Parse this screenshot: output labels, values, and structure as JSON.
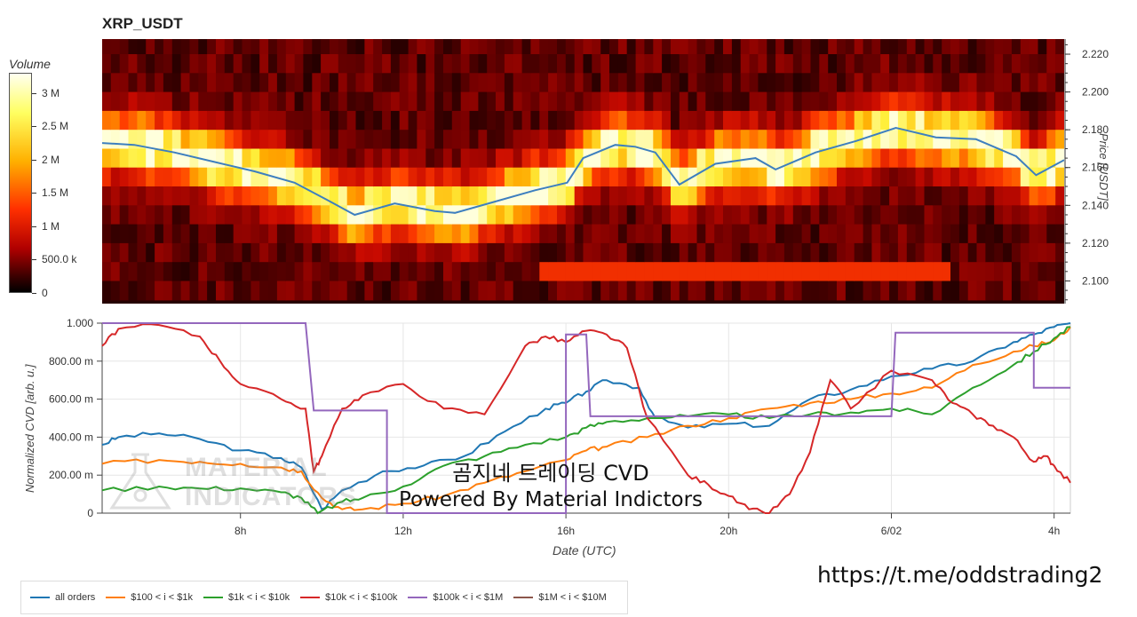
{
  "chart_title": "XRP_USDT",
  "colorbar": {
    "title": "Volume",
    "ticks": [
      {
        "label": "3 M",
        "value": 3000000
      },
      {
        "label": "2.5 M",
        "value": 2500000
      },
      {
        "label": "2 M",
        "value": 2000000
      },
      {
        "label": "1.5 M",
        "value": 1500000
      },
      {
        "label": "1 M",
        "value": 1000000
      },
      {
        "label": "500.0 k",
        "value": 500000
      },
      {
        "label": "0",
        "value": 0
      }
    ]
  },
  "overlay": {
    "title": "곰지네 트레이딩 CVD",
    "subtitle": "Powered By Material Indictors",
    "watermark_line1": "MATERIAL",
    "watermark_line2": "INDICATORS",
    "url": "https://t.me/oddstrading2"
  },
  "colors": {
    "price_line": "#3d7fbf",
    "all_orders": "#1f77b4",
    "b100_1k": "#ff7f0e",
    "b1k_10k": "#2ca02c",
    "b10k_100k": "#d62728",
    "b100k_1m": "#9467bd",
    "b1m_10m": "#8c564b"
  },
  "chart_data": [
    {
      "type": "heatmap",
      "title": "XRP_USDT",
      "ylabel": "Price [USDT]",
      "y_ticks": [
        "2.220",
        "2.200",
        "2.180",
        "2.160",
        "2.140",
        "2.120",
        "2.100"
      ],
      "y_tick_values": [
        2.22,
        2.2,
        2.18,
        2.16,
        2.14,
        2.12,
        2.1
      ],
      "ylim": [
        2.088,
        2.228
      ],
      "x_range_hours": [
        4.2,
        28.2
      ],
      "price_bins": [
        2.225,
        2.215,
        2.205,
        2.195,
        2.185,
        2.175,
        2.165,
        2.155,
        2.145,
        2.135,
        2.125,
        2.115,
        2.105,
        2.095
      ],
      "price_series": {
        "name": "price",
        "x_hours": [
          4.2,
          5.0,
          6.0,
          7.0,
          8.0,
          9.0,
          9.8,
          10.5,
          11.5,
          12.5,
          13.0,
          14.0,
          15.0,
          15.8,
          16.2,
          17.0,
          17.5,
          18.0,
          18.6,
          19.5,
          20.5,
          21.0,
          22.0,
          23.0,
          24.0,
          25.0,
          26.0,
          27.0,
          27.5,
          28.2
        ],
        "values": [
          2.173,
          2.172,
          2.168,
          2.163,
          2.158,
          2.152,
          2.143,
          2.135,
          2.141,
          2.137,
          2.136,
          2.142,
          2.148,
          2.152,
          2.165,
          2.172,
          2.171,
          2.168,
          2.151,
          2.162,
          2.165,
          2.159,
          2.168,
          2.174,
          2.181,
          2.176,
          2.175,
          2.166,
          2.156,
          2.164
        ]
      }
    },
    {
      "type": "line",
      "xlabel": "Date (UTC)",
      "ylabel": "Normalized CVD [arb. u.]",
      "x_ticks": [
        "8h",
        "12h",
        "16h",
        "20h",
        "6/02",
        "4h"
      ],
      "x_tick_values": [
        8,
        12,
        16,
        20,
        24,
        28
      ],
      "y_ticks": [
        "1.000",
        "800.00 m",
        "600.00 m",
        "400.00 m",
        "200.00 m",
        "0"
      ],
      "y_tick_values": [
        1.0,
        0.8,
        0.6,
        0.4,
        0.2,
        0
      ],
      "ylim": [
        0,
        1
      ],
      "xlim": [
        4.6,
        28.4
      ],
      "series": [
        {
          "name": "all orders",
          "color_key": "all_orders",
          "x": [
            4.6,
            5.0,
            6.0,
            7.0,
            8.0,
            9.0,
            9.5,
            10.0,
            10.5,
            11.5,
            12.5,
            13.5,
            14.5,
            15.5,
            16.0,
            16.5,
            17.0,
            17.8,
            18.2,
            19.0,
            20.0,
            21.0,
            22.0,
            23.0,
            24.0,
            25.0,
            26.0,
            27.0,
            27.5,
            28.0,
            28.4
          ],
          "y": [
            0.36,
            0.4,
            0.42,
            0.39,
            0.33,
            0.29,
            0.24,
            0.02,
            0.12,
            0.22,
            0.25,
            0.3,
            0.43,
            0.55,
            0.58,
            0.64,
            0.7,
            0.66,
            0.5,
            0.45,
            0.47,
            0.46,
            0.6,
            0.65,
            0.72,
            0.76,
            0.8,
            0.9,
            0.94,
            0.98,
            1.0
          ]
        },
        {
          "name": "$100 < i < $1k",
          "color_key": "b100_1k",
          "x": [
            4.6,
            6.0,
            7.0,
            8.0,
            9.0,
            9.5,
            10.0,
            10.5,
            11.0,
            12.0,
            13.0,
            14.0,
            15.0,
            16.0,
            16.5,
            17.0,
            18.0,
            19.0,
            20.0,
            21.0,
            22.0,
            23.0,
            24.0,
            25.0,
            26.0,
            27.0,
            27.5,
            28.0,
            28.4
          ],
          "y": [
            0.26,
            0.28,
            0.27,
            0.26,
            0.24,
            0.22,
            0.08,
            0.02,
            0.02,
            0.05,
            0.09,
            0.16,
            0.22,
            0.28,
            0.33,
            0.35,
            0.4,
            0.46,
            0.5,
            0.55,
            0.58,
            0.6,
            0.63,
            0.66,
            0.78,
            0.85,
            0.88,
            0.91,
            0.98
          ]
        },
        {
          "name": "$1k < i < $10k",
          "color_key": "b1k_10k",
          "x": [
            4.6,
            6.0,
            7.0,
            8.0,
            9.0,
            9.5,
            9.9,
            10.5,
            11.0,
            12.0,
            13.0,
            14.0,
            15.0,
            16.0,
            16.5,
            17.0,
            18.0,
            19.0,
            20.0,
            21.0,
            22.0,
            23.0,
            24.0,
            25.0,
            26.0,
            27.0,
            27.5,
            28.0,
            28.4
          ],
          "y": [
            0.12,
            0.14,
            0.13,
            0.13,
            0.11,
            0.08,
            0.0,
            0.06,
            0.08,
            0.14,
            0.25,
            0.3,
            0.36,
            0.4,
            0.45,
            0.48,
            0.5,
            0.51,
            0.52,
            0.5,
            0.52,
            0.53,
            0.55,
            0.52,
            0.66,
            0.78,
            0.85,
            0.92,
            0.98
          ]
        },
        {
          "name": "$10k < i < $100k",
          "color_key": "b10k_100k",
          "x": [
            4.6,
            5.0,
            6.0,
            7.0,
            7.5,
            8.0,
            9.0,
            9.6,
            9.8,
            10.0,
            10.5,
            11.0,
            12.0,
            13.0,
            14.0,
            15.0,
            15.5,
            16.0,
            16.5,
            17.0,
            17.5,
            18.0,
            19.0,
            19.5,
            20.0,
            20.5,
            21.0,
            21.5,
            22.0,
            22.5,
            23.0,
            24.0,
            25.0,
            25.5,
            26.0,
            26.5,
            27.0,
            27.5,
            27.8,
            28.0,
            28.4
          ],
          "y": [
            0.88,
            0.97,
            0.99,
            0.93,
            0.8,
            0.68,
            0.6,
            0.55,
            0.22,
            0.3,
            0.55,
            0.62,
            0.68,
            0.55,
            0.52,
            0.88,
            0.93,
            0.9,
            0.96,
            0.94,
            0.87,
            0.5,
            0.2,
            0.15,
            0.09,
            0.02,
            0.0,
            0.1,
            0.32,
            0.7,
            0.55,
            0.75,
            0.7,
            0.58,
            0.52,
            0.46,
            0.4,
            0.27,
            0.3,
            0.25,
            0.16
          ]
        },
        {
          "name": "$100k < i < $1M",
          "color_key": "b100k_1m",
          "x": [
            4.6,
            9.6,
            9.8,
            11.6,
            11.6,
            16.0,
            16.0,
            16.5,
            16.6,
            24.0,
            24.1,
            27.5,
            27.5,
            28.4
          ],
          "y": [
            1.0,
            1.0,
            0.54,
            0.54,
            0.0,
            0.0,
            0.94,
            0.94,
            0.51,
            0.51,
            0.95,
            0.95,
            0.66,
            0.66
          ]
        },
        {
          "name": "$1M < i < $10M",
          "color_key": "b1m_10m",
          "x": [],
          "y": []
        }
      ]
    }
  ]
}
